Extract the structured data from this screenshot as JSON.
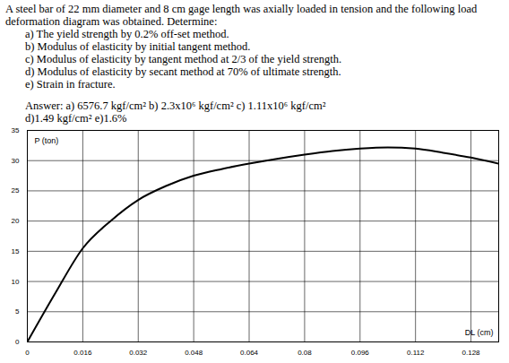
{
  "text": {
    "intro": "A steel bar of 22 mm diameter and 8 cm gage length was axially loaded in tension and the following load deformation diagram was obtained. Determine:",
    "items": [
      "a) The yield strength by 0.2% off-set method.",
      "b) Modulus of elasticity by initial tangent method.",
      "c) Modulus of elasticity by tangent method at 2/3 of the yield strength.",
      "d) Modulus of elasticity by secant method at 70% of ultimate strength.",
      "e) Strain in fracture."
    ],
    "answer_lines": [
      "Answer: a) 6576.7 kgf/cm² b) 2.3x10⁶ kgf/cm² c) 1.11x10⁶ kgf/cm²",
      "d)1.49 kgf/cm² e)1.6%"
    ]
  },
  "chart_data": {
    "type": "line",
    "y_label": "P (ton)",
    "x_label": "DL (cm)",
    "x": [
      0,
      0.008,
      0.016,
      0.024,
      0.032,
      0.04,
      0.048,
      0.056,
      0.064,
      0.072,
      0.08,
      0.088,
      0.096,
      0.104,
      0.112,
      0.12,
      0.128,
      0.136
    ],
    "values": [
      0,
      8,
      15.5,
      20,
      23.5,
      25.8,
      27.5,
      28.6,
      29.5,
      30.3,
      31,
      31.6,
      32,
      32.2,
      32,
      31.3,
      30.5,
      29.5
    ],
    "color": "#000000",
    "xlim": [
      0,
      0.136
    ],
    "ylim": [
      0,
      35
    ],
    "xticks": [
      0,
      0.016,
      0.032,
      0.048,
      0.064,
      0.08,
      0.096,
      0.112,
      0.128
    ],
    "yticks": [
      0,
      5,
      10,
      15,
      20,
      25,
      30,
      35
    ],
    "grid": true
  }
}
